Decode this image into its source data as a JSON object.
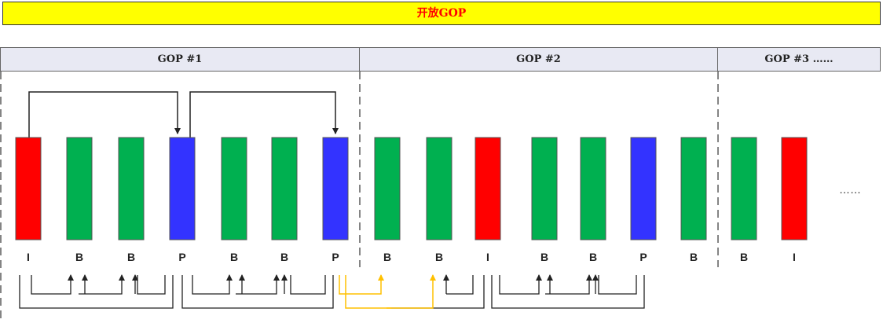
{
  "title": "开放GOP",
  "gops": [
    {
      "label": "GOP #1"
    },
    {
      "label": "GOP #2"
    },
    {
      "label": "GOP #3  ……"
    }
  ],
  "frames": [
    {
      "type": "I",
      "color": "#ff0000"
    },
    {
      "type": "B",
      "color": "#00b050"
    },
    {
      "type": "B",
      "color": "#00b050"
    },
    {
      "type": "P",
      "color": "#3333ff"
    },
    {
      "type": "B",
      "color": "#00b050"
    },
    {
      "type": "B",
      "color": "#00b050"
    },
    {
      "type": "P",
      "color": "#3333ff"
    },
    {
      "type": "B",
      "color": "#00b050"
    },
    {
      "type": "B",
      "color": "#00b050"
    },
    {
      "type": "I",
      "color": "#ff0000"
    },
    {
      "type": "B",
      "color": "#00b050"
    },
    {
      "type": "B",
      "color": "#00b050"
    },
    {
      "type": "P",
      "color": "#3333ff"
    },
    {
      "type": "B",
      "color": "#00b050"
    },
    {
      "type": "B",
      "color": "#00b050"
    },
    {
      "type": "I",
      "color": "#ff0000"
    }
  ],
  "ellipsis": "……",
  "colors": {
    "reference_line": "#222222",
    "open_gop_reference": "#ffc000"
  }
}
